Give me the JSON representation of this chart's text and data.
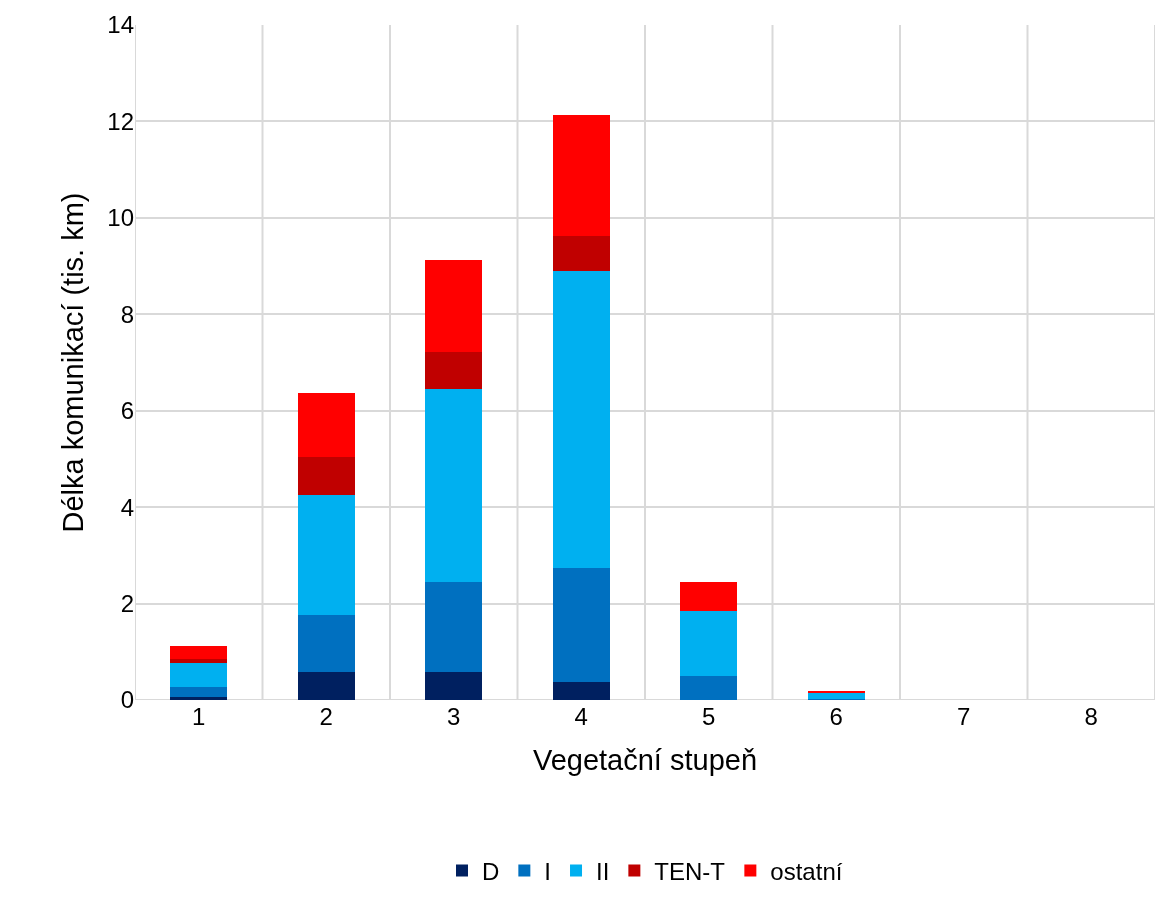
{
  "chart_data": {
    "type": "bar",
    "stacked": true,
    "xlabel": "Vegetační stupeň",
    "ylabel": "Délka komunikací (tis. km)",
    "categories": [
      "1",
      "2",
      "3",
      "4",
      "5",
      "6",
      "7",
      "8"
    ],
    "series": [
      {
        "name": "D",
        "color": "#002060",
        "values": [
          0.07,
          0.58,
          0.58,
          0.38,
          0,
          0,
          0,
          0
        ]
      },
      {
        "name": "I",
        "color": "#0070c0",
        "values": [
          0.19,
          1.18,
          1.87,
          2.36,
          0.5,
          0.02,
          0,
          0
        ]
      },
      {
        "name": "II",
        "color": "#00b0f0",
        "values": [
          0.51,
          2.5,
          4.0,
          6.16,
          1.35,
          0.12,
          0,
          0
        ]
      },
      {
        "name": "TEN-T",
        "color": "#c00000",
        "values": [
          0.09,
          0.78,
          0.77,
          0.73,
          0,
          0,
          0,
          0
        ]
      },
      {
        "name": "ostatní",
        "color": "#ff0000",
        "values": [
          0.26,
          1.33,
          1.91,
          2.51,
          0.59,
          0.05,
          0,
          0
        ]
      }
    ],
    "ylim": [
      0,
      14
    ],
    "yticks": [
      0,
      2,
      4,
      6,
      8,
      10,
      12,
      14
    ],
    "grid": true,
    "legend": "bottom"
  }
}
